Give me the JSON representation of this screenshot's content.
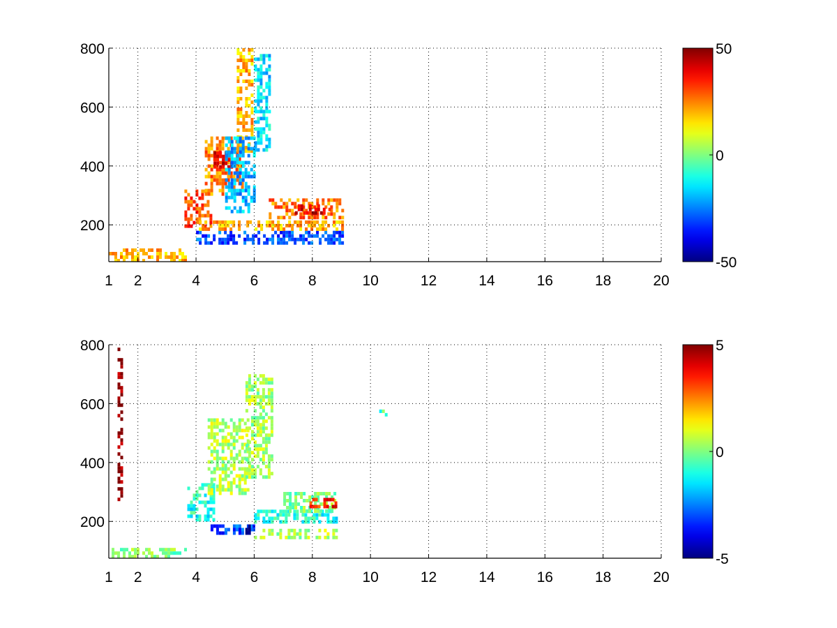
{
  "chart_data": [
    {
      "type": "heatmap",
      "title": "",
      "xlabel": "",
      "ylabel": "",
      "xlim": [
        1,
        20
      ],
      "ylim": [
        75,
        800
      ],
      "x_ticks": [
        1,
        2,
        4,
        6,
        8,
        10,
        12,
        14,
        16,
        18,
        20
      ],
      "x_tick_labels": [
        "1",
        "2",
        "4",
        "6",
        "8",
        "10",
        "12",
        "14",
        "16",
        "18",
        "20"
      ],
      "y_ticks": [
        200,
        400,
        600,
        800
      ],
      "y_tick_labels": [
        "200",
        "400",
        "600",
        "800"
      ],
      "grid": true,
      "colormap": "jet",
      "color_range": [
        -50,
        50
      ],
      "colorbar_ticks": [
        -50,
        0,
        50
      ],
      "colorbar_tick_labels": [
        "-50",
        "0",
        "50"
      ],
      "features": [
        {
          "x": [
            1.0,
            3.6
          ],
          "y": [
            80,
            120
          ],
          "value": 20
        },
        {
          "x": [
            3.6,
            4.5
          ],
          "y": [
            200,
            320
          ],
          "value": 30
        },
        {
          "x": [
            4.3,
            5.6
          ],
          "y": [
            300,
            500
          ],
          "value": 25
        },
        {
          "x": [
            4.6,
            5.4
          ],
          "y": [
            400,
            450
          ],
          "value": 40
        },
        {
          "x": [
            5.4,
            5.9
          ],
          "y": [
            450,
            800
          ],
          "value": 20
        },
        {
          "x": [
            5.0,
            6.0
          ],
          "y": [
            250,
            500
          ],
          "value": -20
        },
        {
          "x": [
            6.0,
            6.5
          ],
          "y": [
            450,
            780
          ],
          "value": -15
        },
        {
          "x": [
            4.0,
            9.0
          ],
          "y": [
            140,
            180
          ],
          "value": -30
        },
        {
          "x": [
            4.0,
            9.0
          ],
          "y": [
            190,
            215
          ],
          "value": 20
        },
        {
          "x": [
            6.5,
            9.0
          ],
          "y": [
            230,
            290
          ],
          "value": 25
        },
        {
          "x": [
            7.4,
            8.6
          ],
          "y": [
            245,
            270
          ],
          "value": 40
        }
      ]
    },
    {
      "type": "heatmap",
      "title": "",
      "xlabel": "",
      "ylabel": "",
      "xlim": [
        1,
        20
      ],
      "ylim": [
        75,
        800
      ],
      "x_ticks": [
        1,
        2,
        4,
        6,
        8,
        10,
        12,
        14,
        16,
        18,
        20
      ],
      "x_tick_labels": [
        "1",
        "2",
        "4",
        "6",
        "8",
        "10",
        "12",
        "14",
        "16",
        "18",
        "20"
      ],
      "y_ticks": [
        200,
        400,
        600,
        800
      ],
      "y_tick_labels": [
        "200",
        "400",
        "600",
        "800"
      ],
      "grid": true,
      "colormap": "jet",
      "color_range": [
        -5,
        5
      ],
      "colorbar_ticks": [
        -5,
        0,
        5
      ],
      "colorbar_tick_labels": [
        "-5",
        "0",
        "5"
      ],
      "features": [
        {
          "x": [
            1.0,
            3.6
          ],
          "y": [
            80,
            110
          ],
          "value": 0
        },
        {
          "x": [
            3.7,
            4.6
          ],
          "y": [
            200,
            330
          ],
          "value": -1
        },
        {
          "x": [
            4.4,
            5.8
          ],
          "y": [
            300,
            550
          ],
          "value": 0.5
        },
        {
          "x": [
            5.7,
            6.6
          ],
          "y": [
            350,
            700
          ],
          "value": 0.3
        },
        {
          "x": [
            4.5,
            6.0
          ],
          "y": [
            160,
            190
          ],
          "value": -3
        },
        {
          "x": [
            5.6,
            5.9
          ],
          "y": [
            160,
            190
          ],
          "value": -5
        },
        {
          "x": [
            6.0,
            8.8
          ],
          "y": [
            150,
            175
          ],
          "value": 0.5
        },
        {
          "x": [
            6.0,
            8.8
          ],
          "y": [
            200,
            240
          ],
          "value": -1
        },
        {
          "x": [
            7.0,
            8.8
          ],
          "y": [
            240,
            300
          ],
          "value": 0
        },
        {
          "x": [
            7.9,
            8.8
          ],
          "y": [
            250,
            280
          ],
          "value": 3.5
        },
        {
          "x": [
            1.3,
            1.45
          ],
          "y": [
            280,
            790
          ],
          "value": 5
        },
        {
          "x": [
            10.3,
            10.5
          ],
          "y": [
            560,
            580
          ],
          "value": -0.5
        }
      ]
    }
  ]
}
